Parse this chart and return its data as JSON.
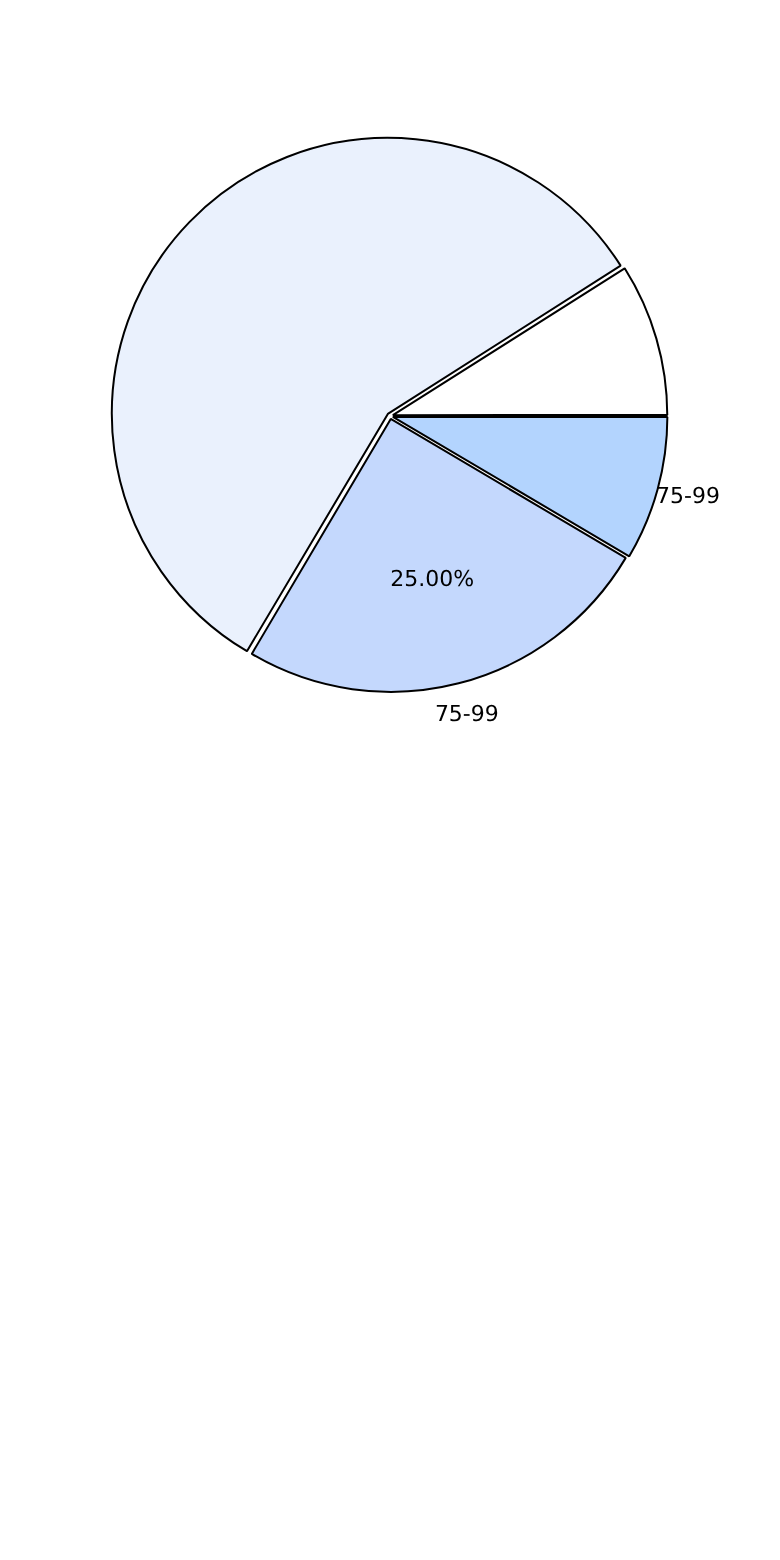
{
  "chart_data": {
    "type": "pie",
    "categories": [
      "75-99",
      "75-99",
      null,
      null
    ],
    "values": [
      8.5,
      25,
      57.5,
      9
    ],
    "colors": [
      "#b3d4fe",
      "#c4d8fd",
      "#eaf1fd",
      "#ffffff"
    ],
    "value_labels": [
      null,
      "25.00%",
      null,
      null
    ],
    "legend": false
  }
}
